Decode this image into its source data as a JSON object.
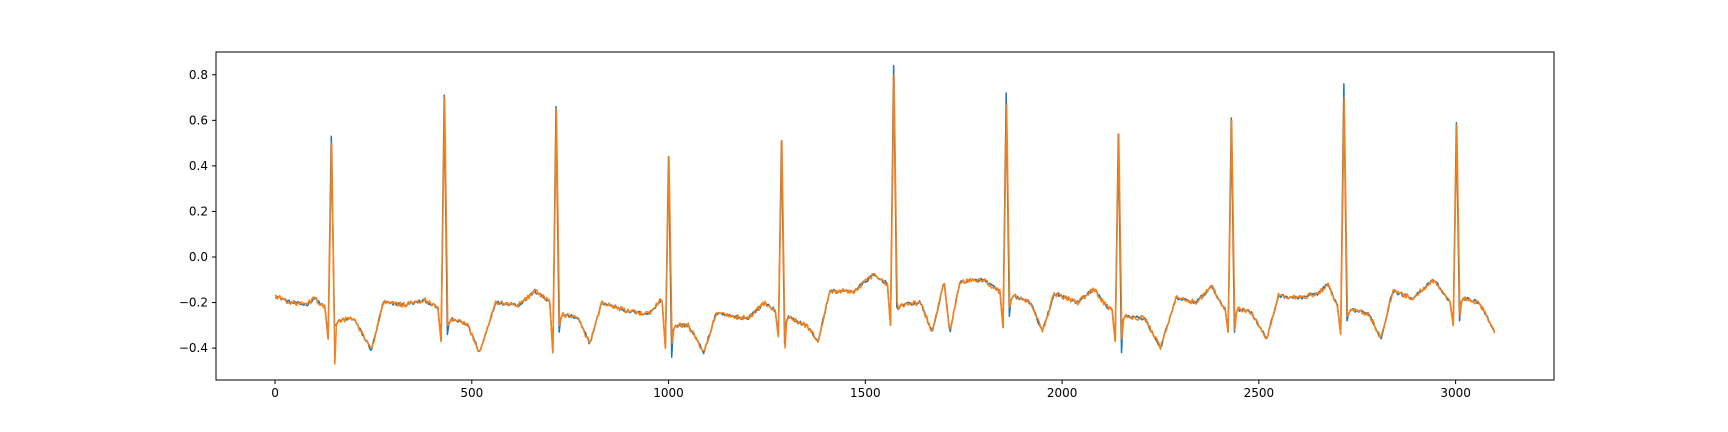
{
  "figure": {
    "background": "#ffffff"
  },
  "chart_data": {
    "type": "line",
    "title": "",
    "xlabel": "",
    "ylabel": "",
    "xlim": [
      -150,
      3250
    ],
    "ylim": [
      -0.54,
      0.9
    ],
    "xticks": [
      0,
      500,
      1000,
      1500,
      2000,
      2500,
      3000
    ],
    "xtick_labels": [
      "0",
      "500",
      "1000",
      "1500",
      "2000",
      "2500",
      "3000"
    ],
    "yticks": [
      -0.4,
      -0.2,
      0.0,
      0.2,
      0.4,
      0.6,
      0.8
    ],
    "ytick_labels": [
      "−0.4",
      "−0.2",
      "0.0",
      "0.2",
      "0.4",
      "0.6",
      "0.8"
    ],
    "grid": false,
    "legend": "none",
    "x_range": [
      0,
      3100
    ],
    "beats": [
      {
        "r": 143,
        "amp_a": 0.53,
        "amp_b": 0.5,
        "q": -0.36,
        "s_a": -0.3,
        "s_b": -0.47
      },
      {
        "r": 430,
        "amp_a": 0.71,
        "amp_b": 0.7,
        "q": -0.37,
        "s_a": -0.34,
        "s_b": -0.3
      },
      {
        "r": 714,
        "amp_a": 0.66,
        "amp_b": 0.65,
        "q": -0.42,
        "s_a": -0.33,
        "s_b": -0.3
      },
      {
        "r": 1000,
        "amp_a": 0.44,
        "amp_b": 0.44,
        "q": -0.4,
        "s_a": -0.44,
        "s_b": -0.38
      },
      {
        "r": 1287,
        "amp_a": 0.51,
        "amp_b": 0.51,
        "q": -0.35,
        "s_a": -0.38,
        "s_b": -0.4
      },
      {
        "r": 1572,
        "amp_a": 0.84,
        "amp_b": 0.8,
        "q": -0.3,
        "s_a": -0.22,
        "s_b": -0.2
      },
      {
        "r": 1858,
        "amp_a": 0.72,
        "amp_b": 0.67,
        "q": -0.31,
        "s_a": -0.26,
        "s_b": -0.22
      },
      {
        "r": 2143,
        "amp_a": 0.54,
        "amp_b": 0.54,
        "q": -0.37,
        "s_a": -0.42,
        "s_b": -0.36
      },
      {
        "r": 2430,
        "amp_a": 0.61,
        "amp_b": 0.6,
        "q": -0.33,
        "s_a": -0.33,
        "s_b": -0.32
      },
      {
        "r": 2716,
        "amp_a": 0.76,
        "amp_b": 0.7,
        "q": -0.34,
        "s_a": -0.28,
        "s_b": -0.26
      },
      {
        "r": 3002,
        "amp_a": 0.59,
        "amp_b": 0.58,
        "q": -0.3,
        "s_a": -0.28,
        "s_b": -0.26
      }
    ],
    "baseline": [
      [
        0,
        -0.17
      ],
      [
        40,
        -0.2
      ],
      [
        80,
        -0.21
      ],
      [
        100,
        -0.18
      ],
      [
        125,
        -0.22
      ],
      [
        160,
        -0.28
      ],
      [
        200,
        -0.27
      ],
      [
        245,
        -0.41
      ],
      [
        275,
        -0.2
      ],
      [
        330,
        -0.21
      ],
      [
        380,
        -0.19
      ],
      [
        410,
        -0.22
      ],
      [
        445,
        -0.27
      ],
      [
        490,
        -0.3
      ],
      [
        520,
        -0.42
      ],
      [
        560,
        -0.2
      ],
      [
        620,
        -0.21
      ],
      [
        660,
        -0.15
      ],
      [
        700,
        -0.2
      ],
      [
        730,
        -0.25
      ],
      [
        770,
        -0.27
      ],
      [
        800,
        -0.38
      ],
      [
        830,
        -0.2
      ],
      [
        900,
        -0.24
      ],
      [
        950,
        -0.25
      ],
      [
        980,
        -0.19
      ],
      [
        1015,
        -0.3
      ],
      [
        1050,
        -0.3
      ],
      [
        1090,
        -0.42
      ],
      [
        1120,
        -0.25
      ],
      [
        1200,
        -0.27
      ],
      [
        1245,
        -0.2
      ],
      [
        1275,
        -0.24
      ],
      [
        1310,
        -0.27
      ],
      [
        1350,
        -0.3
      ],
      [
        1380,
        -0.37
      ],
      [
        1410,
        -0.15
      ],
      [
        1470,
        -0.15
      ],
      [
        1520,
        -0.08
      ],
      [
        1560,
        -0.12
      ],
      [
        1590,
        -0.21
      ],
      [
        1640,
        -0.2
      ],
      [
        1670,
        -0.33
      ],
      [
        1700,
        -0.11
      ],
      [
        1715,
        -0.33
      ],
      [
        1740,
        -0.11
      ],
      [
        1800,
        -0.1
      ],
      [
        1840,
        -0.15
      ],
      [
        1875,
        -0.17
      ],
      [
        1920,
        -0.2
      ],
      [
        1950,
        -0.33
      ],
      [
        1980,
        -0.16
      ],
      [
        2040,
        -0.2
      ],
      [
        2080,
        -0.14
      ],
      [
        2115,
        -0.22
      ],
      [
        2165,
        -0.26
      ],
      [
        2210,
        -0.27
      ],
      [
        2250,
        -0.4
      ],
      [
        2290,
        -0.18
      ],
      [
        2340,
        -0.2
      ],
      [
        2380,
        -0.13
      ],
      [
        2410,
        -0.22
      ],
      [
        2450,
        -0.23
      ],
      [
        2480,
        -0.24
      ],
      [
        2520,
        -0.36
      ],
      [
        2550,
        -0.17
      ],
      [
        2600,
        -0.18
      ],
      [
        2650,
        -0.16
      ],
      [
        2675,
        -0.12
      ],
      [
        2700,
        -0.22
      ],
      [
        2735,
        -0.23
      ],
      [
        2780,
        -0.25
      ],
      [
        2810,
        -0.36
      ],
      [
        2840,
        -0.15
      ],
      [
        2890,
        -0.18
      ],
      [
        2945,
        -0.1
      ],
      [
        2985,
        -0.2
      ],
      [
        3020,
        -0.18
      ],
      [
        3060,
        -0.2
      ],
      [
        3100,
        -0.33
      ]
    ],
    "series": [
      {
        "color": "#1f77b4"
      },
      {
        "color": "#ff7f0e"
      }
    ]
  }
}
